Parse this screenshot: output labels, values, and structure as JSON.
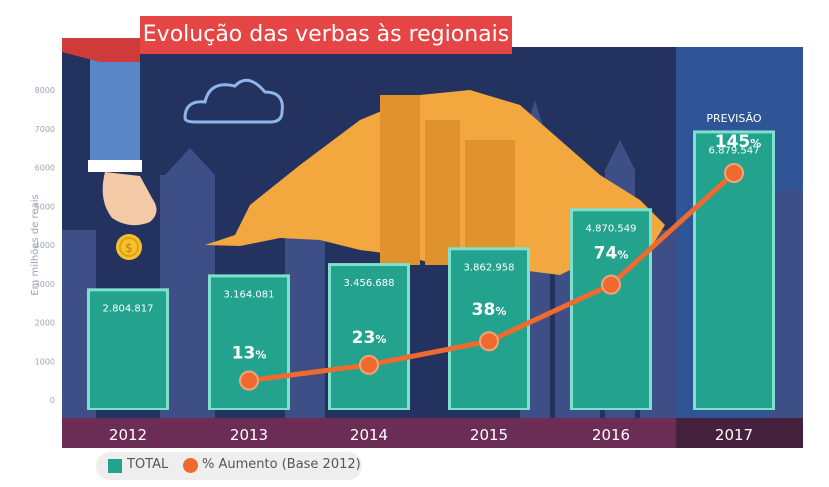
{
  "title": "Evolução das verbas às regionais",
  "chart_data": {
    "type": "bar",
    "ylabel": "Em milhões de reais",
    "ylim": [
      0,
      8000
    ],
    "yticks": [
      "0",
      "1000",
      "2000",
      "3000",
      "4000",
      "5000",
      "6000",
      "7000",
      "8000"
    ],
    "categories": [
      "2012",
      "2013",
      "2014",
      "2015",
      "2016",
      "2017"
    ],
    "series": [
      {
        "name": "TOTAL",
        "values": [
          2804.817,
          3164.081,
          3456.688,
          3862.958,
          4870.549,
          6879.547
        ],
        "labels": [
          "2.804.817",
          "3.164.081",
          "3.456.688",
          "3.862.958",
          "4.870.549",
          "6.879.547"
        ]
      },
      {
        "name": "% Aumento (Base 2012)",
        "x": [
          "2013",
          "2014",
          "2015",
          "2016",
          "2017"
        ],
        "values": [
          13,
          23,
          38,
          74,
          145
        ],
        "labels": [
          "13",
          "23",
          "38",
          "74",
          "145"
        ]
      }
    ],
    "pct_suffix": "%",
    "annotation": "PREVISÃO"
  },
  "colors": {
    "bar": "#23a38d",
    "bar_edge": "#7fe0cd",
    "line": "#ee6a2e",
    "bg_dark": "#23325e",
    "bg_forecast": "#2f5596",
    "axis_band": "#6b2c55",
    "axis_band_forecast": "#45213e",
    "title_bg": "#e64545",
    "map": "#f2a83f"
  }
}
